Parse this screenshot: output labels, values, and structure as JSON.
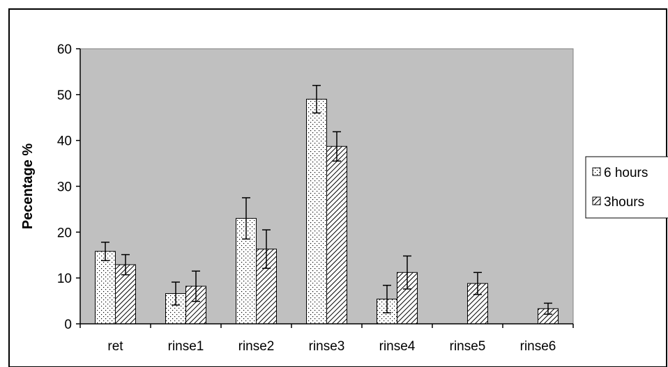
{
  "chart_data": {
    "type": "bar",
    "title": "",
    "xlabel": "",
    "ylabel": "Pecentage %",
    "ylim": [
      0,
      60
    ],
    "yticks": [
      0,
      10,
      20,
      30,
      40,
      50,
      60
    ],
    "categories": [
      "ret",
      "rinse1",
      "rinse2",
      "rinse3",
      "rinse4",
      "rinse5",
      "rinse6"
    ],
    "series": [
      {
        "name": "6 hours",
        "pattern": "dots",
        "values": [
          15.8,
          6.6,
          23.0,
          49.0,
          5.4,
          0,
          0
        ],
        "errors": [
          2.0,
          2.5,
          4.5,
          3.0,
          3.0,
          0,
          0
        ]
      },
      {
        "name": "3hours",
        "pattern": "diagonal-hatch",
        "values": [
          12.9,
          8.2,
          16.3,
          38.7,
          11.2,
          8.8,
          3.3
        ],
        "errors": [
          2.2,
          3.3,
          4.2,
          3.2,
          3.6,
          2.4,
          1.2
        ]
      }
    ],
    "plot_background": "#c0c0c0",
    "bar_fill": "#ffffff",
    "legend_position": "right",
    "grid": false
  }
}
